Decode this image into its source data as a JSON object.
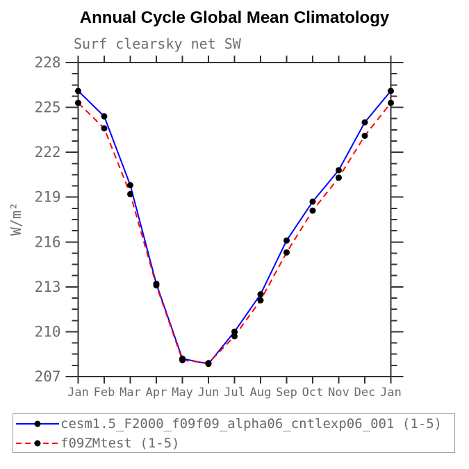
{
  "chart_data": {
    "type": "line",
    "title": "Annual Cycle Global Mean Climatology",
    "subtitle": "Surf clearsky net SW",
    "ylabel": "W/m²",
    "xlabel": "",
    "categories": [
      "Jan",
      "Feb",
      "Mar",
      "Apr",
      "May",
      "Jun",
      "Jul",
      "Aug",
      "Sep",
      "Oct",
      "Nov",
      "Dec",
      "Jan"
    ],
    "ylim": [
      207,
      228
    ],
    "yticks": [
      207,
      210,
      213,
      216,
      219,
      222,
      225,
      228
    ],
    "ytick_step": 3,
    "yminor_step": 0.75,
    "grid": false,
    "legend_position": "bottom-left-outside",
    "series": [
      {
        "name": "cesm1.5_F2000_f09f09_alpha06_cntlexp06_001 (1-5)",
        "color": "#0000ff",
        "style": "solid",
        "marker": "circle",
        "marker_color": "#000000",
        "values": [
          226.1,
          224.4,
          219.8,
          213.2,
          208.2,
          207.85,
          210.0,
          212.5,
          216.1,
          218.7,
          220.8,
          224.0,
          226.1
        ]
      },
      {
        "name": "f09ZMtest (1-5)",
        "color": "#ff0000",
        "style": "dashed",
        "marker": "circle",
        "marker_color": "#000000",
        "values": [
          225.3,
          223.6,
          219.2,
          213.1,
          208.1,
          207.9,
          209.7,
          212.1,
          215.3,
          218.1,
          220.3,
          223.1,
          225.3
        ]
      }
    ]
  },
  "colors": {
    "axis": "#333333",
    "tick_label": "#6b6b6b",
    "title_text": "#000000",
    "legend_border": "#999999",
    "legend_text": "#6a6a6a",
    "background": "#ffffff"
  }
}
